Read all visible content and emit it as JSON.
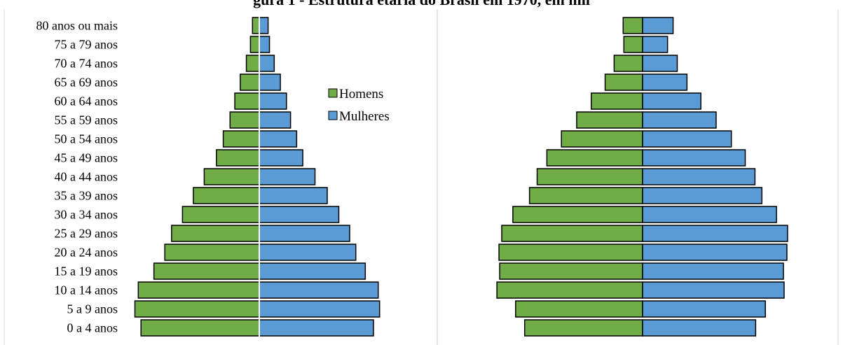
{
  "title": "gura 1 - Estrutura etária do Brasil em 1970, em mil",
  "colors": {
    "men": "#70AD47",
    "women": "#5B9BD5",
    "border": "#000000",
    "divider": "#D9D9D9"
  },
  "chart_data": [
    {
      "type": "bar",
      "orientation": "horizontal-pyramid",
      "categories": [
        "0 a 4 anos",
        "5 a 9 anos",
        "10 a 14 anos",
        "15 a 19 anos",
        "20 a 24 anos",
        "25 a 29 anos",
        "30 a 34 anos",
        "35 a 39 anos",
        "40 a 44 anos",
        "45 a 49 anos",
        "50 a 54 anos",
        "55 a 59 anos",
        "60 a 64 anos",
        "65 a 69 anos",
        "70 a 74 anos",
        "75 a 79 anos",
        "80 anos ou mais"
      ],
      "series": [
        {
          "name": "Homens",
          "values": [
            174,
            183,
            178,
            155,
            139,
            129,
            113,
            97,
            81,
            63,
            53,
            43,
            36,
            28,
            19,
            13,
            10
          ]
        },
        {
          "name": "Mulheres",
          "values": [
            168,
            177,
            175,
            156,
            142,
            133,
            117,
            100,
            82,
            64,
            55,
            46,
            40,
            31,
            22,
            15,
            13
          ]
        }
      ],
      "xlim": [
        -190,
        190
      ],
      "legend": {
        "placement": "center-right",
        "entries": [
          "Homens",
          "Mulheres"
        ]
      },
      "grid": false
    },
    {
      "type": "bar",
      "orientation": "horizontal-pyramid",
      "categories": [
        "0 a 4 anos",
        "5 a 9 anos",
        "10 a 14 anos",
        "15 a 19 anos",
        "20 a 24 anos",
        "25 a 29 anos",
        "30 a 34 anos",
        "35 a 39 anos",
        "40 a 44 anos",
        "45 a 49 anos",
        "50 a 54 anos",
        "55 a 59 anos",
        "60 a 64 anos",
        "65 a 69 anos",
        "70 a 74 anos",
        "75 a 79 anos",
        "80 anos ou mais"
      ],
      "series": [
        {
          "name": "Homens",
          "values": [
            170,
            183,
            210,
            206,
            207,
            203,
            187,
            163,
            152,
            138,
            117,
            95,
            74,
            54,
            41,
            27,
            28
          ]
        },
        {
          "name": "Mulheres",
          "values": [
            163,
            177,
            204,
            203,
            208,
            209,
            193,
            172,
            162,
            148,
            128,
            106,
            84,
            64,
            50,
            36,
            44
          ]
        }
      ],
      "xlim": [
        -225,
        225
      ],
      "grid": false
    }
  ]
}
